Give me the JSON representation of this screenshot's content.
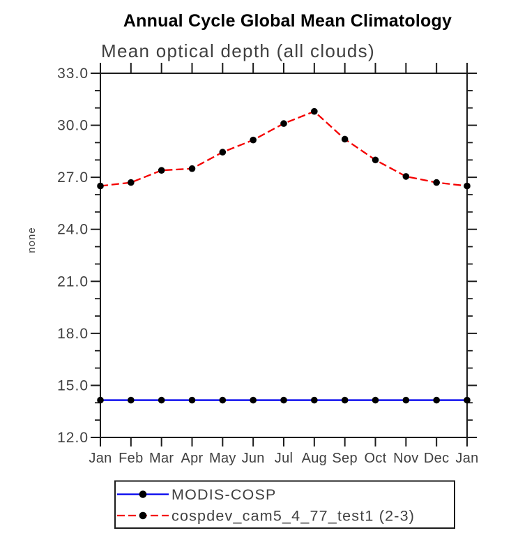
{
  "header": {
    "title": "Annual Cycle Global Mean Climatology",
    "subtitle": "Mean optical depth (all clouds)"
  },
  "chart_data": {
    "type": "line",
    "title": "Annual Cycle Global Mean Climatology",
    "subtitle": "Mean optical depth (all clouds)",
    "xlabel": "",
    "ylabel": "none",
    "categories": [
      "Jan",
      "Feb",
      "Mar",
      "Apr",
      "May",
      "Jun",
      "Jul",
      "Aug",
      "Sep",
      "Oct",
      "Nov",
      "Dec",
      "Jan"
    ],
    "ylim": [
      12.0,
      33.0
    ],
    "yticks": {
      "major_values": [
        12.0,
        15.0,
        18.0,
        21.0,
        24.0,
        27.0,
        30.0,
        33.0
      ],
      "major_labels": [
        "12.0",
        "15.0",
        "18.0",
        "21.0",
        "24.0",
        "27.0",
        "30.0",
        "33.0"
      ],
      "minor_step": 1.0
    },
    "grid": false,
    "legend_position": "bottom-left",
    "series": [
      {
        "name": "MODIS-COSP",
        "color": "#0000ee",
        "line_style": "solid",
        "marker": "filled-circle",
        "marker_color": "#000000",
        "values": [
          14.15,
          14.15,
          14.15,
          14.15,
          14.15,
          14.15,
          14.15,
          14.15,
          14.15,
          14.15,
          14.15,
          14.15,
          14.15
        ]
      },
      {
        "name": "cospdev_cam5_4_77_test1 (2-3)",
        "color": "#f40000",
        "line_style": "dashed",
        "marker": "filled-circle",
        "marker_color": "#000000",
        "values": [
          26.5,
          26.7,
          27.4,
          27.5,
          28.45,
          29.15,
          30.1,
          30.8,
          29.2,
          28.0,
          27.05,
          26.7,
          26.5
        ]
      }
    ]
  },
  "colors": {
    "axis": "#1c1c1c",
    "tick_text": "#3f3f3f",
    "title_text": "#000000",
    "background": "#ffffff"
  }
}
